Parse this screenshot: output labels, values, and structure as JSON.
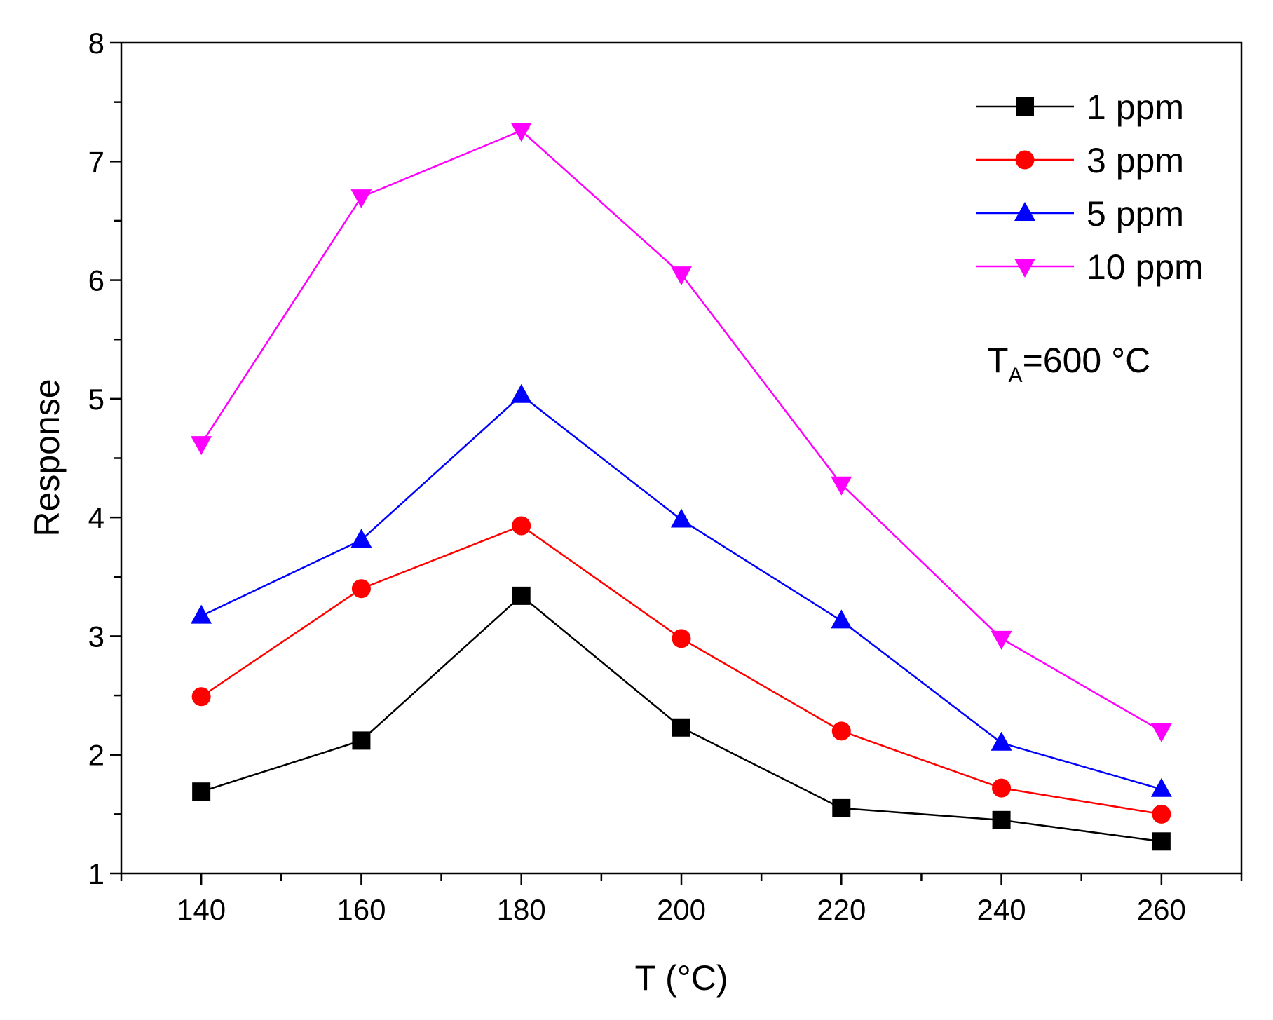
{
  "chart_data": {
    "type": "line",
    "title": "",
    "xlabel": "T (°C)",
    "ylabel": "Response",
    "xlim": [
      130,
      270
    ],
    "ylim": [
      1,
      8
    ],
    "xticks": [
      140,
      160,
      180,
      200,
      220,
      240,
      260
    ],
    "yticks": [
      1,
      2,
      3,
      4,
      5,
      6,
      7,
      8
    ],
    "grid": false,
    "legend_position": "top-right",
    "x": [
      140,
      160,
      180,
      200,
      220,
      240,
      260
    ],
    "series": [
      {
        "name": "1 ppm",
        "color": "#000000",
        "marker": "square",
        "values": [
          1.69,
          2.12,
          3.34,
          2.23,
          1.55,
          1.45,
          1.27
        ]
      },
      {
        "name": "3 ppm",
        "color": "#ff0000",
        "marker": "circle",
        "values": [
          2.49,
          3.4,
          3.93,
          2.98,
          2.2,
          1.72,
          1.5
        ]
      },
      {
        "name": "5 ppm",
        "color": "#0000ff",
        "marker": "triangle-up",
        "values": [
          3.17,
          3.81,
          5.03,
          3.98,
          3.13,
          2.1,
          1.71
        ]
      },
      {
        "name": "10 ppm",
        "color": "#ff00ff",
        "marker": "triangle-down",
        "values": [
          4.62,
          6.7,
          7.26,
          6.05,
          4.28,
          2.98,
          2.2
        ]
      }
    ],
    "annotation": {
      "main": "T",
      "subscript": "A",
      "rest": "=600 °C"
    }
  }
}
